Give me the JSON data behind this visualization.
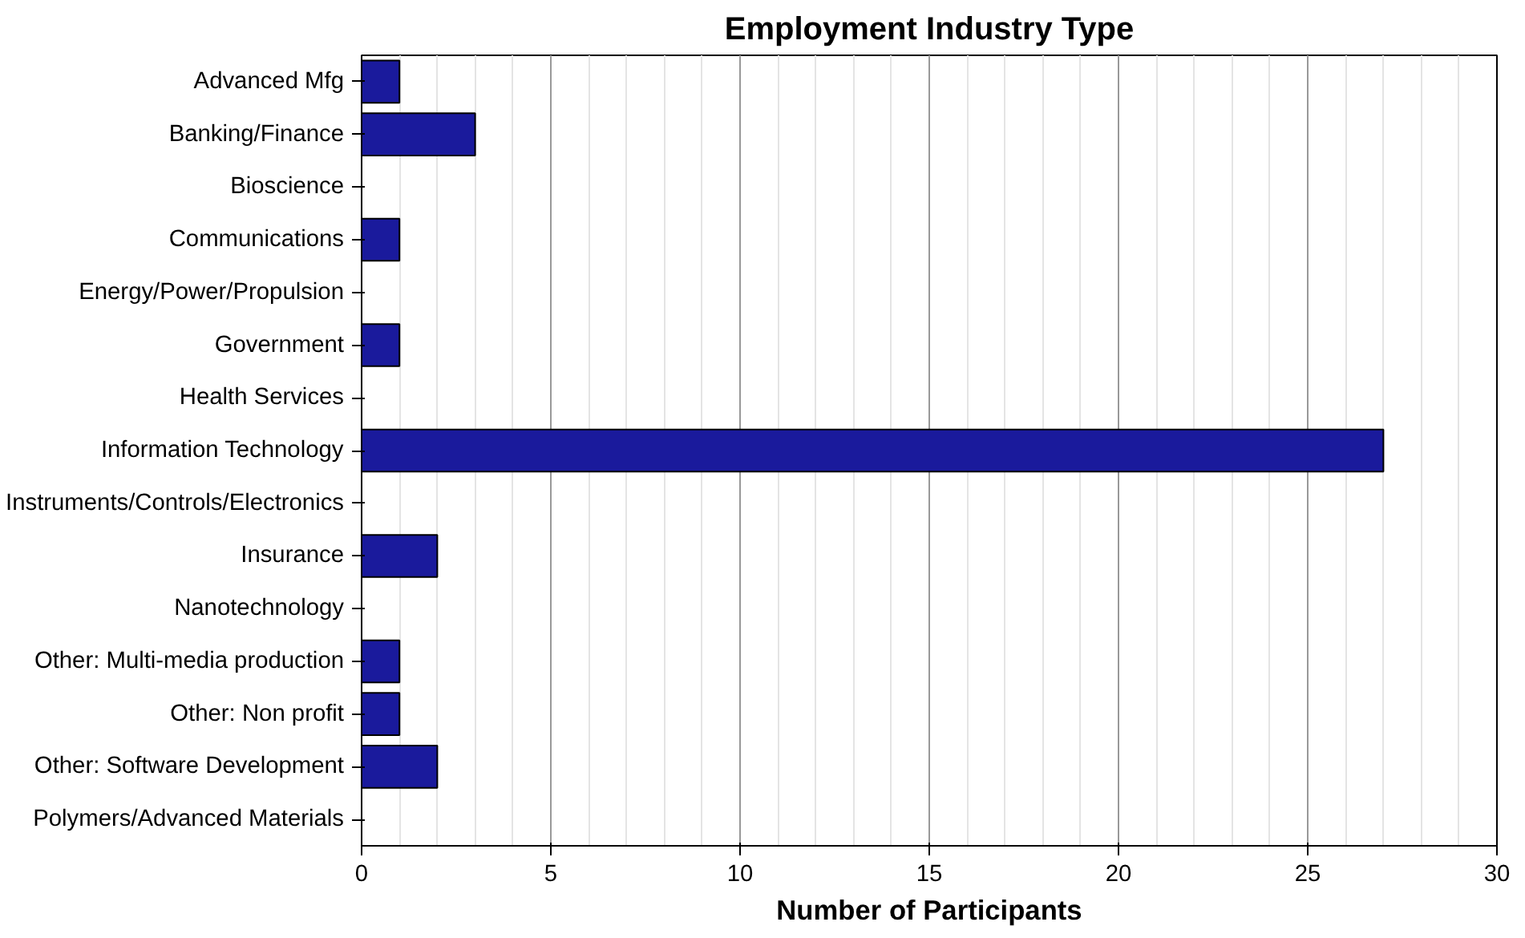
{
  "chart_data": {
    "type": "bar",
    "orientation": "horizontal",
    "title": "Employment Industry Type",
    "xlabel": "Number of Participants",
    "categories": [
      "Advanced Mfg",
      "Banking/Finance",
      "Bioscience",
      "Communications",
      "Energy/Power/Propulsion",
      "Government",
      "Health Services",
      "Information Technology",
      "Instruments/Controls/Electronics",
      "Insurance",
      "Nanotechnology",
      "Other: Multi-media production",
      "Other: Non profit",
      "Other: Software Development",
      "Polymers/Advanced Materials"
    ],
    "values": [
      1,
      3,
      0,
      1,
      0,
      1,
      0,
      27,
      0,
      2,
      0,
      1,
      1,
      2,
      0
    ],
    "color": "#1a1a9c",
    "xlim": [
      0,
      30
    ],
    "xticks": [
      0,
      5,
      10,
      15,
      20,
      25,
      30
    ],
    "grid": "x"
  }
}
